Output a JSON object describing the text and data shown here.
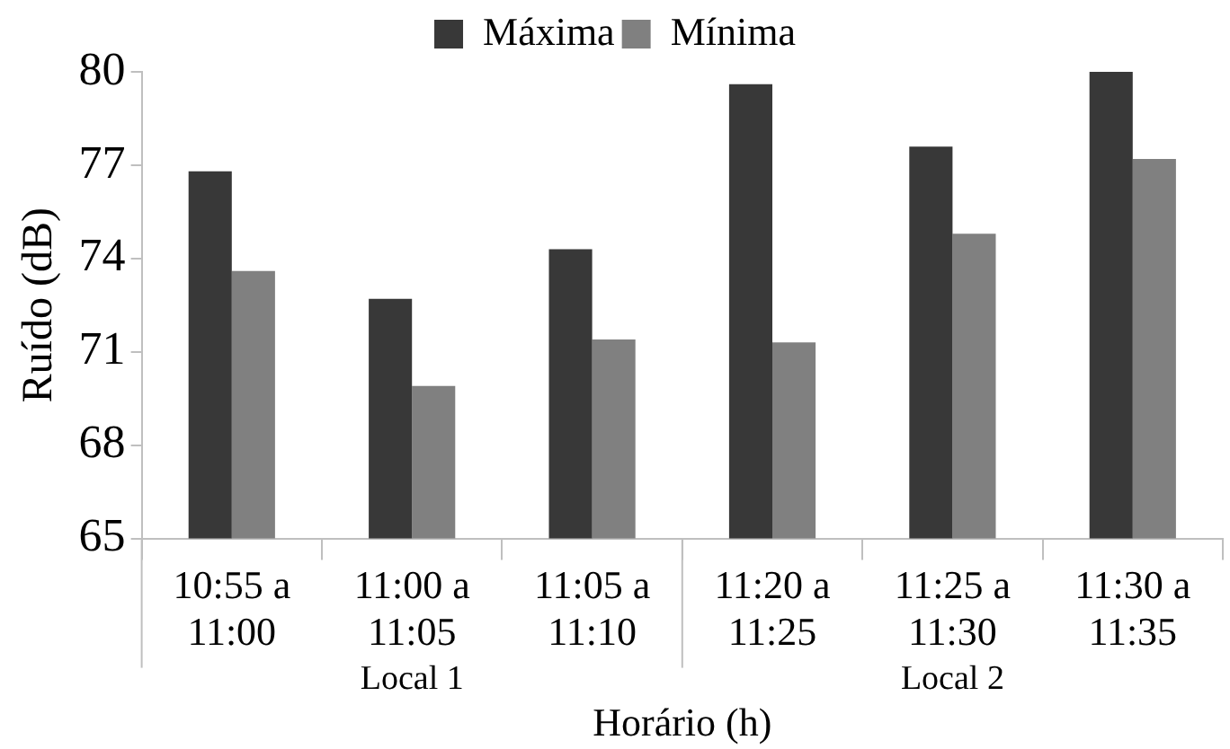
{
  "chart_data": {
    "type": "bar",
    "xlabel": "Horário (h)",
    "ylabel": "Ruído (dB)",
    "categories": [
      "10:55 a\n11:00",
      "11:00 a\n11:05",
      "11:05 a\n11:10",
      "11:20 a\n11:25",
      "11:25 a\n11:30",
      "11:30 a\n11:35"
    ],
    "series": [
      {
        "name": "Máxima",
        "color": "#383838",
        "values": [
          76.8,
          72.7,
          74.3,
          79.6,
          77.6,
          80.0
        ]
      },
      {
        "name": "Mínima",
        "color": "#808080",
        "values": [
          73.6,
          69.9,
          71.4,
          71.3,
          74.8,
          77.2
        ]
      }
    ],
    "ylim": [
      65,
      80
    ],
    "yticks": [
      65,
      68,
      71,
      74,
      77,
      80
    ],
    "grid": false,
    "legend": "top",
    "annotations": [
      "Local 1",
      "Local 2"
    ]
  }
}
